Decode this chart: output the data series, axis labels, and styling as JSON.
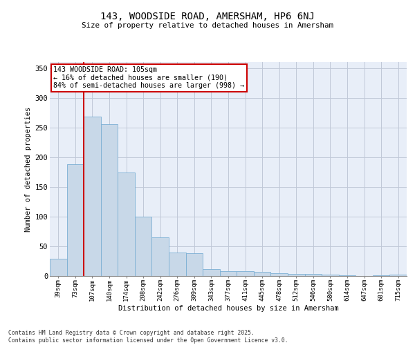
{
  "title1": "143, WOODSIDE ROAD, AMERSHAM, HP6 6NJ",
  "title2": "Size of property relative to detached houses in Amersham",
  "xlabel": "Distribution of detached houses by size in Amersham",
  "ylabel": "Number of detached properties",
  "categories": [
    "39sqm",
    "73sqm",
    "107sqm",
    "140sqm",
    "174sqm",
    "208sqm",
    "242sqm",
    "276sqm",
    "309sqm",
    "343sqm",
    "377sqm",
    "411sqm",
    "445sqm",
    "478sqm",
    "512sqm",
    "546sqm",
    "580sqm",
    "614sqm",
    "647sqm",
    "681sqm",
    "715sqm"
  ],
  "values": [
    29,
    188,
    268,
    256,
    174,
    100,
    65,
    40,
    38,
    12,
    8,
    8,
    7,
    5,
    4,
    4,
    2,
    1,
    0,
    1,
    2
  ],
  "bar_color": "#c8d8e8",
  "bar_edge_color": "#7bafd4",
  "grid_color": "#c0c8d8",
  "background_color": "#e8eef8",
  "vline_x_idx": 2,
  "vline_color": "#cc0000",
  "annotation_text": "143 WOODSIDE ROAD: 105sqm\n← 16% of detached houses are smaller (190)\n84% of semi-detached houses are larger (998) →",
  "annotation_box_color": "#ffffff",
  "annotation_box_edge": "#cc0000",
  "footer1": "Contains HM Land Registry data © Crown copyright and database right 2025.",
  "footer2": "Contains public sector information licensed under the Open Government Licence v3.0.",
  "ylim": [
    0,
    360
  ],
  "yticks": [
    0,
    50,
    100,
    150,
    200,
    250,
    300,
    350
  ]
}
